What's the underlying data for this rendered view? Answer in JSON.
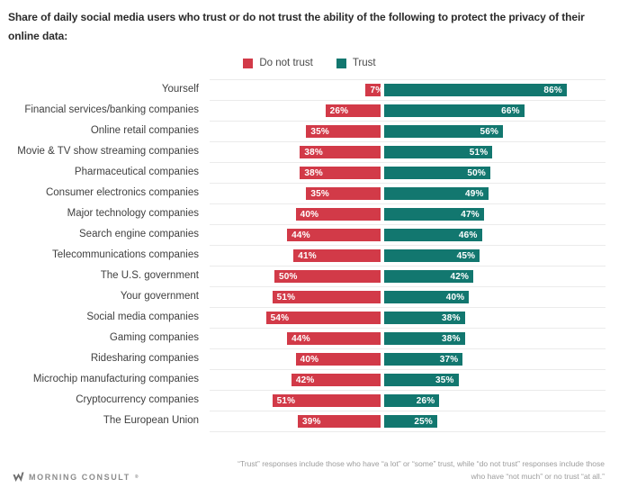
{
  "title": "Share of daily social media users who trust or do not trust the ability of the following to protect the privacy of their online data:",
  "legend": {
    "do_not_trust": "Do not trust",
    "trust": "Trust"
  },
  "colors": {
    "do_not_trust": "#d23a48",
    "trust": "#12776f",
    "grid_line": "#ebebeb"
  },
  "footer": {
    "brand": "MORNING CONSULT",
    "trademark": "®",
    "note_line1": "“Trust” responses include those who have “a lot” or “some” trust, while “do not trust” responses include those",
    "note_line2": "who have “not much” or no trust “at all.”"
  },
  "chart_data": {
    "type": "bar",
    "orientation": "horizontal-diverging",
    "unit": "%",
    "title": "Share of daily social media users who trust or do not trust the ability of the following to protect the privacy of their online data:",
    "legend_position": "top-center",
    "row_separators": true,
    "value_labels": "inside-bar-ends",
    "categories": [
      "Yourself",
      "Financial services/banking companies",
      "Online retail companies",
      "Movie & TV show streaming companies",
      "Pharmaceutical companies",
      "Consumer electronics companies",
      "Major technology companies",
      "Search engine companies",
      "Telecommunications companies",
      "The U.S. government",
      "Your government",
      "Social media companies",
      "Gaming companies",
      "Ridesharing companies",
      "Microchip manufacturing companies",
      "Cryptocurrency companies",
      "The European Union"
    ],
    "series": [
      {
        "name": "Do not trust",
        "color": "#d23a48",
        "direction": "left",
        "values": [
          7,
          26,
          35,
          38,
          38,
          35,
          40,
          44,
          41,
          50,
          51,
          54,
          44,
          40,
          42,
          51,
          39
        ]
      },
      {
        "name": "Trust",
        "color": "#12776f",
        "direction": "right",
        "values": [
          86,
          66,
          56,
          51,
          50,
          49,
          47,
          46,
          45,
          42,
          40,
          38,
          38,
          37,
          35,
          26,
          25
        ]
      }
    ],
    "xlim": [
      0,
      90
    ]
  }
}
